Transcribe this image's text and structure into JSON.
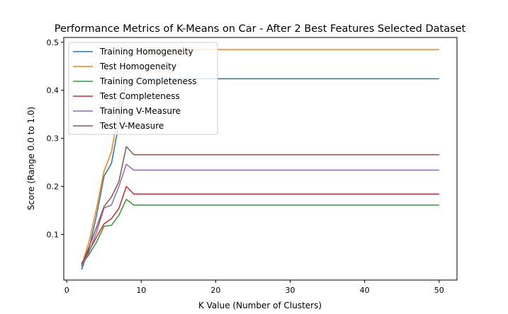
{
  "chart_data": {
    "type": "line",
    "title": "Performance Metrics of K-Means on Car - After 2 Best Features Selected Dataset",
    "xlabel": "K Value (Number of Clusters)",
    "ylabel": "Score (Range 0.0 to 1.0)",
    "xlim": [
      -0.4,
      52.4
    ],
    "ylim": [
      0.005,
      0.51
    ],
    "xticks": [
      0,
      10,
      20,
      30,
      40,
      50
    ],
    "yticks": [
      0.1,
      0.2,
      0.3,
      0.4,
      0.5
    ],
    "grid": false,
    "legend_position": "top-left",
    "x": [
      2,
      3,
      4,
      5,
      6,
      7,
      8,
      9,
      10,
      15,
      20,
      25,
      30,
      35,
      40,
      45,
      50
    ],
    "series": [
      {
        "name": "Training Homogeneity",
        "color": "#1f77b4",
        "values": [
          0.027,
          0.07,
          0.14,
          0.221,
          0.248,
          0.33,
          0.42,
          0.424,
          0.424,
          0.424,
          0.424,
          0.424,
          0.424,
          0.424,
          0.424,
          0.424,
          0.424
        ]
      },
      {
        "name": "Test Homogeneity",
        "color": "#ff7f0e",
        "values": [
          0.035,
          0.085,
          0.155,
          0.232,
          0.272,
          0.36,
          0.48,
          0.485,
          0.485,
          0.485,
          0.485,
          0.485,
          0.485,
          0.485,
          0.485,
          0.485,
          0.485
        ]
      },
      {
        "name": "Training Completeness",
        "color": "#2ca02c",
        "values": [
          0.037,
          0.058,
          0.084,
          0.117,
          0.119,
          0.14,
          0.173,
          0.161,
          0.161,
          0.161,
          0.161,
          0.161,
          0.161,
          0.161,
          0.161,
          0.161,
          0.161
        ]
      },
      {
        "name": "Test Completeness",
        "color": "#d62728",
        "values": [
          0.04,
          0.065,
          0.095,
          0.122,
          0.133,
          0.154,
          0.2,
          0.184,
          0.184,
          0.184,
          0.184,
          0.184,
          0.184,
          0.184,
          0.184,
          0.184,
          0.184
        ]
      },
      {
        "name": "Training V-Measure",
        "color": "#9467bd",
        "values": [
          0.033,
          0.063,
          0.105,
          0.155,
          0.161,
          0.2,
          0.246,
          0.234,
          0.234,
          0.234,
          0.234,
          0.234,
          0.234,
          0.234,
          0.234,
          0.234,
          0.234
        ]
      },
      {
        "name": "Test V-Measure",
        "color": "#8c564b",
        "values": [
          0.037,
          0.074,
          0.115,
          0.158,
          0.178,
          0.21,
          0.283,
          0.266,
          0.266,
          0.266,
          0.266,
          0.266,
          0.266,
          0.266,
          0.266,
          0.266,
          0.266
        ]
      }
    ]
  }
}
